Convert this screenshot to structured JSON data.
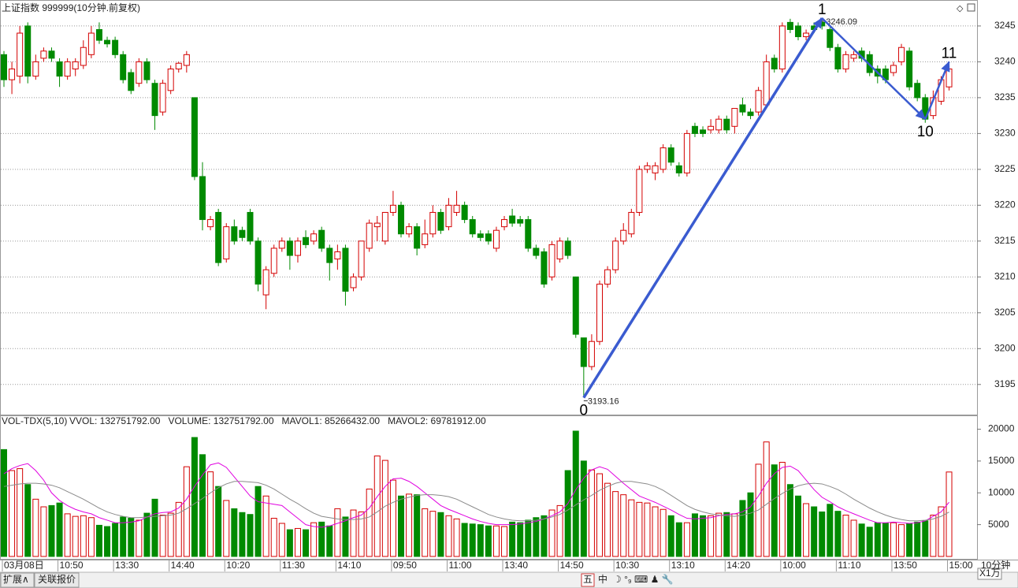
{
  "chart_data": [
    {
      "type": "candlestick",
      "title": "上证指数 999999(10分钟.前复权)",
      "ohlc": [
        [
          3241,
          3241.5,
          3236.5,
          3237.5
        ],
        [
          3237.5,
          3240,
          3235.5,
          3239
        ],
        [
          3238,
          3245,
          3237,
          3244
        ],
        [
          3245,
          3245.5,
          3237,
          3238
        ],
        [
          3238,
          3241,
          3237.5,
          3240
        ],
        [
          3240.5,
          3242,
          3240,
          3241.5
        ],
        [
          3241.5,
          3242,
          3240,
          3240.5
        ],
        [
          3240,
          3240.5,
          3236.5,
          3238
        ],
        [
          3238,
          3240.5,
          3237.5,
          3240
        ],
        [
          3239,
          3240.5,
          3238,
          3240
        ],
        [
          3239.5,
          3243,
          3239,
          3242
        ],
        [
          3241,
          3245,
          3240.5,
          3244
        ],
        [
          3244.5,
          3245.5,
          3242.5,
          3243
        ],
        [
          3243,
          3243.5,
          3242,
          3242.5
        ],
        [
          3243,
          3243.5,
          3240.5,
          3241
        ],
        [
          3241,
          3241.5,
          3237,
          3237.5
        ],
        [
          3238.5,
          3239,
          3235.5,
          3236
        ],
        [
          3237,
          3240.5,
          3236.5,
          3240
        ],
        [
          3240,
          3240.5,
          3237,
          3237.5
        ],
        [
          3237,
          3237.5,
          3230.5,
          3232.5
        ],
        [
          3233,
          3237.5,
          3232.5,
          3237
        ],
        [
          3236,
          3239.5,
          3235.5,
          3239
        ],
        [
          3239,
          3240,
          3238.5,
          3239.8
        ],
        [
          3239.5,
          3241.5,
          3238.5,
          3241
        ],
        [
          3235,
          3235,
          3223.5,
          3224
        ],
        [
          3224,
          3226,
          3216.5,
          3218
        ],
        [
          3217,
          3218.5,
          3216.5,
          3218
        ],
        [
          3219,
          3219.5,
          3211.5,
          3212
        ],
        [
          3212.5,
          3217.5,
          3212,
          3217
        ],
        [
          3217,
          3218,
          3214.5,
          3215
        ],
        [
          3216.5,
          3217,
          3215,
          3215.5
        ],
        [
          3219,
          3219.5,
          3214.5,
          3215
        ],
        [
          3215,
          3215.5,
          3208,
          3209
        ],
        [
          3207.5,
          3211.5,
          3205.5,
          3211
        ],
        [
          3210.5,
          3214.5,
          3210,
          3214
        ],
        [
          3214,
          3215.5,
          3213.5,
          3215
        ],
        [
          3215,
          3215.5,
          3211,
          3213
        ],
        [
          3213,
          3215.5,
          3212,
          3215
        ],
        [
          3215.5,
          3216.5,
          3214,
          3214.5
        ],
        [
          3215,
          3216.5,
          3214.5,
          3216
        ],
        [
          3216.5,
          3217,
          3213.5,
          3214
        ],
        [
          3214,
          3214.5,
          3209.5,
          3212
        ],
        [
          3212.5,
          3214.5,
          3211,
          3213.5
        ],
        [
          3214,
          3214.5,
          3206,
          3208
        ],
        [
          3208.5,
          3210.5,
          3208,
          3210
        ],
        [
          3210,
          3215,
          3209.5,
          3215
        ],
        [
          3214,
          3218,
          3213.5,
          3217.5
        ],
        [
          3217,
          3218.5,
          3215,
          3217.5
        ],
        [
          3215,
          3219,
          3214.5,
          3219
        ],
        [
          3219,
          3222,
          3218.5,
          3220
        ],
        [
          3220,
          3220.5,
          3215.5,
          3216
        ],
        [
          3216,
          3217.5,
          3215.5,
          3217
        ],
        [
          3217,
          3217.5,
          3213,
          3214
        ],
        [
          3214.5,
          3218,
          3214,
          3216
        ],
        [
          3216,
          3220,
          3215.5,
          3219
        ],
        [
          3219,
          3219.5,
          3216,
          3216.5
        ],
        [
          3217,
          3221,
          3216.5,
          3220
        ],
        [
          3219,
          3222,
          3218.5,
          3220
        ],
        [
          3220,
          3220.5,
          3217.5,
          3218
        ],
        [
          3218,
          3218.5,
          3215.5,
          3216
        ],
        [
          3216,
          3216.5,
          3215,
          3215.5
        ],
        [
          3216,
          3216.5,
          3214.5,
          3215
        ],
        [
          3214,
          3217,
          3213.5,
          3216.5
        ],
        [
          3217,
          3218.5,
          3216.5,
          3218
        ],
        [
          3218.5,
          3219.5,
          3217,
          3217.5
        ],
        [
          3218,
          3218.5,
          3217,
          3217.5
        ],
        [
          3218,
          3218.5,
          3213.5,
          3214
        ],
        [
          3214,
          3214.5,
          3212.5,
          3213
        ],
        [
          3213.5,
          3214,
          3208.5,
          3209
        ],
        [
          3210,
          3215,
          3209.5,
          3214.5
        ],
        [
          3212.5,
          3215.5,
          3212,
          3215
        ],
        [
          3215,
          3215.5,
          3212.5,
          3213
        ],
        [
          3210,
          3210,
          3201.5,
          3202
        ],
        [
          3201.5,
          3201.5,
          3193.16,
          3197.5
        ],
        [
          3197.5,
          3202,
          3197,
          3201
        ],
        [
          3201,
          3209.5,
          3200.5,
          3209
        ],
        [
          3209,
          3211.5,
          3208.5,
          3211
        ],
        [
          3211,
          3215.5,
          3210.5,
          3215
        ],
        [
          3215,
          3217.5,
          3214.5,
          3216.5
        ],
        [
          3216,
          3219.5,
          3215.5,
          3219
        ],
        [
          3219,
          3225.5,
          3218.5,
          3225
        ],
        [
          3225,
          3226,
          3224.5,
          3225.5
        ],
        [
          3224.5,
          3226,
          3223.5,
          3225.5
        ],
        [
          3225,
          3228.5,
          3224.5,
          3228
        ],
        [
          3228,
          3228.5,
          3225.5,
          3226
        ],
        [
          3225.5,
          3226,
          3224,
          3224.5
        ],
        [
          3224.5,
          3230.5,
          3224,
          3230
        ],
        [
          3231,
          3231.5,
          3229.5,
          3230
        ],
        [
          3230.5,
          3231,
          3229.5,
          3230
        ],
        [
          3230.5,
          3232,
          3230,
          3231
        ],
        [
          3230.5,
          3232.5,
          3230,
          3232
        ],
        [
          3232,
          3232.5,
          3230,
          3230.5
        ],
        [
          3231,
          3233.5,
          3230,
          3233.5
        ],
        [
          3234,
          3235,
          3232.5,
          3233
        ],
        [
          3233,
          3233.5,
          3232,
          3232.5
        ],
        [
          3233,
          3236.5,
          3232.5,
          3236
        ],
        [
          3234,
          3241,
          3233.5,
          3240
        ],
        [
          3240.5,
          3241,
          3238.5,
          3239
        ],
        [
          3239,
          3245.5,
          3238.5,
          3245
        ],
        [
          3245.5,
          3246,
          3244,
          3244.5
        ],
        [
          3245,
          3245.5,
          3243,
          3243.5
        ],
        [
          3243.5,
          3244.5,
          3243,
          3244
        ],
        [
          3245,
          3245.5,
          3244,
          3244.5
        ],
        [
          3245.5,
          3246.09,
          3244.5,
          3245
        ],
        [
          3244.5,
          3244.8,
          3241.5,
          3242
        ],
        [
          3242,
          3242.5,
          3238.5,
          3239
        ],
        [
          3239,
          3241.5,
          3238.5,
          3241
        ],
        [
          3240.5,
          3241.5,
          3240,
          3241
        ],
        [
          3241.5,
          3242,
          3240,
          3240.5
        ],
        [
          3241,
          3241.5,
          3238,
          3238.5
        ],
        [
          3239,
          3239.5,
          3237,
          3238
        ],
        [
          3239,
          3239.5,
          3237,
          3237.5
        ],
        [
          3238.5,
          3240,
          3238,
          3239.5
        ],
        [
          3240,
          3242.5,
          3239.5,
          3242
        ],
        [
          3241.5,
          3242,
          3236,
          3236.5
        ],
        [
          3237,
          3237.5,
          3234.5,
          3235
        ],
        [
          3235,
          3235.5,
          3231.5,
          3232
        ],
        [
          3232.5,
          3236,
          3232,
          3235
        ],
        [
          3234.5,
          3238,
          3234,
          3237.5
        ],
        [
          3236.5,
          3240,
          3236,
          3239
        ]
      ],
      "ylim": [
        3190.8,
        3248.4
      ],
      "yticks": [
        3195,
        3200,
        3205,
        3210,
        3215,
        3220,
        3225,
        3230,
        3235,
        3240,
        3245
      ],
      "grid": true,
      "up_color": "#d40000",
      "down_color": "#008a00",
      "line_color": "#3a5bd0",
      "zigzag": [
        {
          "label": "0",
          "index": 73,
          "price": 3193.16,
          "value_label": "3193.16",
          "position": "below"
        },
        {
          "label": "1",
          "index": 103,
          "price": 3246.09,
          "value_label": "3246.09",
          "position": "above"
        },
        {
          "label": "10",
          "index": 116,
          "price": 3232,
          "position": "below"
        },
        {
          "label": "11",
          "index": 119,
          "price": 3240,
          "position": "above"
        }
      ]
    },
    {
      "type": "volume",
      "title": "VOL-TDX(5,10)",
      "legend": [
        {
          "text": "VVOL: 132751792.00",
          "color": "#222"
        },
        {
          "text": "VOLUME: 132751792.00",
          "color": "#d000d0"
        },
        {
          "text": "MAVOL1: 85266432.00",
          "color": "#d000d0"
        },
        {
          "text": "MAVOL2: 69781912.00",
          "color": "#888888"
        }
      ],
      "values": [
        16800,
        13500,
        13800,
        11300,
        9000,
        7800,
        8000,
        8400,
        6700,
        6300,
        6400,
        6100,
        4900,
        4700,
        5200,
        6200,
        6000,
        5700,
        6800,
        9000,
        6500,
        6800,
        8500,
        14100,
        18700,
        16000,
        13300,
        11000,
        8800,
        7500,
        6900,
        6600,
        11000,
        9500,
        6000,
        5200,
        4200,
        4400,
        4200,
        5300,
        5400,
        4800,
        7500,
        6200,
        7300,
        7000,
        10600,
        15800,
        15100,
        12000,
        9500,
        9800,
        9700,
        7500,
        7100,
        6900,
        6400,
        5900,
        5200,
        5100,
        5000,
        4800,
        4800,
        4700,
        5400,
        5300,
        5700,
        6100,
        6400,
        7300,
        8000,
        13500,
        19700,
        15000,
        13600,
        13000,
        11500,
        10200,
        9700,
        8900,
        8500,
        8400,
        7800,
        7400,
        6400,
        5300,
        5300,
        6700,
        6400,
        6400,
        6800,
        6900,
        6700,
        8800,
        10000,
        14500,
        18000,
        14400,
        14800,
        11300,
        9500,
        8300,
        7800,
        7000,
        8200,
        7100,
        6500,
        5700,
        5100,
        4600,
        5300,
        5200,
        5300,
        5000,
        5200,
        5400,
        5600,
        6500,
        7800,
        13275
      ],
      "series": [
        {
          "color": "#e000e0",
          "values": [
            13000,
            13800,
            14300,
            14600,
            13500,
            12000,
            10000,
            8800,
            8000,
            7400,
            7000,
            6700,
            6100,
            5700,
            5300,
            5300,
            5400,
            5600,
            6200,
            6700,
            6900,
            7000,
            7600,
            9000,
            11000,
            12800,
            14400,
            14700,
            14000,
            12500,
            11000,
            9500,
            8600,
            8400,
            8200,
            8000,
            7000,
            6000,
            5000,
            4700,
            4600,
            4800,
            5200,
            5600,
            6100,
            6500,
            7600,
            9400,
            11000,
            12200,
            12300,
            11800,
            11000,
            10000,
            9000,
            8000,
            7400,
            6900,
            6400,
            5900,
            5500,
            5200,
            5000,
            5000,
            5000,
            5100,
            5300,
            5500,
            5900,
            6400,
            7000,
            8300,
            10500,
            12300,
            13600,
            14100,
            13700,
            12600,
            11500,
            10500,
            9500,
            9000,
            8500,
            7900,
            7300,
            6600,
            6000,
            5900,
            6000,
            6100,
            6400,
            6600,
            6700,
            7000,
            7800,
            9500,
            11500,
            13000,
            14000,
            14200,
            13500,
            12000,
            10500,
            9300,
            8600,
            7800,
            7200,
            6700,
            6200,
            5700,
            5300,
            5300,
            5400,
            5300,
            5200,
            5300,
            5600,
            6300,
            7000,
            8527
          ]
        },
        {
          "color": "#8a8a8a",
          "values": [
            11000,
            11200,
            11400,
            11500,
            11500,
            11400,
            11200,
            10800,
            10200,
            9600,
            9000,
            8300,
            7600,
            7000,
            6600,
            6300,
            6100,
            6100,
            6200,
            6300,
            6400,
            6500,
            6800,
            7500,
            8300,
            9100,
            10000,
            10800,
            11400,
            11800,
            11800,
            11700,
            11600,
            11200,
            10600,
            9800,
            9000,
            8300,
            7500,
            6800,
            6300,
            6100,
            5900,
            5800,
            5800,
            5900,
            6200,
            7000,
            7900,
            8500,
            9000,
            9300,
            9600,
            9700,
            9700,
            9600,
            9400,
            9000,
            8400,
            7800,
            7200,
            6600,
            6200,
            5900,
            5700,
            5600,
            5600,
            5700,
            5900,
            6200,
            6600,
            7300,
            8100,
            8900,
            9600,
            10400,
            11000,
            11500,
            11800,
            11800,
            11600,
            11400,
            11000,
            10400,
            9600,
            8800,
            8000,
            7400,
            7000,
            6700,
            6500,
            6400,
            6300,
            6500,
            6800,
            7300,
            8200,
            9100,
            9900,
            10600,
            11100,
            11400,
            11500,
            11400,
            11000,
            10500,
            9800,
            9000,
            8300,
            7600,
            7000,
            6500,
            6100,
            5800,
            5600,
            5600,
            5700,
            5900,
            6300,
            6978
          ]
        }
      ],
      "ylim": [
        -500,
        22050
      ],
      "yticks": [
        5000,
        10000,
        15000,
        20000
      ],
      "unit": "X1万"
    }
  ],
  "categories": [
    "03月08日",
    null,
    null,
    null,
    null,
    null,
    null,
    "10:50",
    null,
    null,
    null,
    null,
    null,
    null,
    "13:30",
    null,
    null,
    null,
    null,
    null,
    null,
    "14:40",
    null,
    null,
    null,
    null,
    null,
    null,
    "10:20",
    null,
    null,
    null,
    null,
    null,
    null,
    "11:30",
    null,
    null,
    null,
    null,
    null,
    null,
    "14:10",
    null,
    null,
    null,
    null,
    null,
    null,
    "09:50",
    null,
    null,
    null,
    null,
    null,
    null,
    "11:00",
    null,
    null,
    null,
    null,
    null,
    null,
    "13:40",
    null,
    null,
    null,
    null,
    null,
    null,
    "14:50",
    null,
    null,
    null,
    null,
    null,
    null,
    "10:30",
    null,
    null,
    null,
    null,
    null,
    null,
    "13:10",
    null,
    null,
    null,
    null,
    null,
    null,
    "14:20",
    null,
    null,
    null,
    null,
    null,
    null,
    "10:00",
    null,
    null,
    null,
    null,
    null,
    null,
    "11:10",
    null,
    null,
    null,
    null,
    null,
    null,
    "13:50",
    null,
    null,
    null,
    null,
    null,
    null,
    "15:00"
  ],
  "period": "10分钟",
  "tabs": [
    "扩展∧",
    "关联报价"
  ],
  "toolbar": [
    "五",
    "中"
  ]
}
